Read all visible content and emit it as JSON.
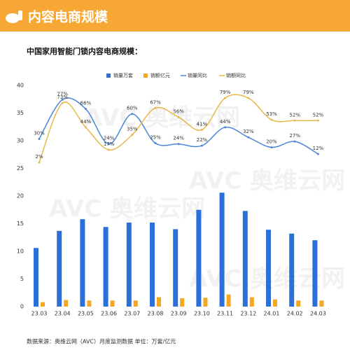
{
  "header": {
    "title": "内容电商规模"
  },
  "chart_data": {
    "type": "bar",
    "title": "中国家用智能门锁内容电商规模：",
    "categories": [
      "23.03",
      "23.04",
      "23.05",
      "23.06",
      "23.07",
      "23.08",
      "23.09",
      "23.10",
      "23.11",
      "23.12",
      "24.01",
      "24.02",
      "24.03"
    ],
    "series": [
      {
        "name": "销量万套",
        "color": "#2b6fd8",
        "values": [
          10.6,
          13.7,
          15.8,
          14.4,
          15.2,
          15.2,
          14.0,
          17.5,
          20.6,
          17.3,
          13.9,
          13.2,
          12.0
        ]
      },
      {
        "name": "销额亿元",
        "color": "#f5a623",
        "values": [
          0.8,
          1.2,
          1.1,
          1.1,
          1.1,
          1.7,
          1.5,
          1.6,
          2.2,
          1.7,
          1.3,
          1.1,
          1.1
        ]
      },
      {
        "name": "销量同比",
        "type": "line",
        "color": "#4a86d8",
        "values": [
          30,
          77,
          66,
          24,
          60,
          25,
          24,
          22,
          44,
          32,
          20,
          27,
          12
        ],
        "value_labels": [
          "30%",
          "77%",
          "66%",
          "24%",
          "60%",
          "25%",
          "24%",
          "22%",
          "44%",
          "32%",
          "20%",
          "27%",
          "12%"
        ]
      },
      {
        "name": "销额同比",
        "type": "line",
        "color": "#e8b84a",
        "values": [
          2,
          73,
          44,
          17,
          35,
          67,
          56,
          41,
          79,
          79,
          53,
          52,
          52
        ],
        "value_labels": [
          "2%",
          "73%",
          "44%",
          "17%",
          "35%",
          "67%",
          "56%",
          "41%",
          "79%",
          "79%",
          "53%",
          "52%",
          "52%"
        ]
      }
    ],
    "ylim": [
      0,
      40
    ],
    "yticks": [
      0,
      5,
      10,
      15,
      20,
      25,
      30,
      35,
      40
    ],
    "watermark": "AVC 奥维云网",
    "footnote": "数据来源：奥维云网（AVC）月度监测数据    单位：万套/亿元"
  }
}
